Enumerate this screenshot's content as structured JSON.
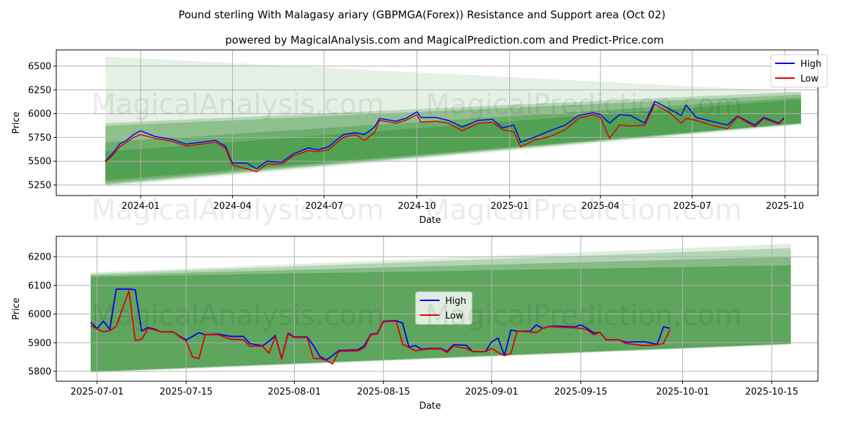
{
  "title": "Pound sterling With Malagasy ariary (GBPMGA(Forex)) Resistance and Support area (Oct 02)",
  "subtitle": "powered by MagicalAnalysis.com and MagicalPrediction.com and Predict-Price.com",
  "watermark": [
    "MagicalAnalysis.com",
    "MagicalPrediction.com"
  ],
  "colors": {
    "high": "#0000ee",
    "low": "#dd0000",
    "band": "#2e8b2e"
  },
  "chart_data": [
    {
      "type": "line",
      "xlabel": "Date",
      "ylabel": "Price",
      "ylim": [
        5150,
        6680
      ],
      "yticks": [
        5250,
        5500,
        5750,
        6000,
        6250,
        6500
      ],
      "xticks": [
        "2024-01",
        "2024-04",
        "2024-07",
        "2024-10",
        "2025-01",
        "2025-04",
        "2025-07",
        "2025-10"
      ],
      "legend": {
        "position": "top-right",
        "entries": [
          "High",
          "Low"
        ]
      },
      "grid": true,
      "bands": [
        {
          "start": "2023-11-27",
          "end": "2025-10-17",
          "lo": [
            5230,
            5880
          ],
          "hi": [
            6600,
            6230
          ],
          "alpha": 0.12
        },
        {
          "start": "2023-11-27",
          "end": "2025-10-17",
          "lo": [
            5250,
            5890
          ],
          "hi": [
            5900,
            6230
          ],
          "alpha": 0.25
        },
        {
          "start": "2023-11-27",
          "end": "2025-10-17",
          "lo": [
            5260,
            5900
          ],
          "hi": [
            5870,
            6200
          ],
          "alpha": 0.3
        },
        {
          "start": "2023-11-27",
          "end": "2025-10-17",
          "lo": [
            5280,
            5900
          ],
          "hi": [
            5700,
            6170
          ],
          "alpha": 0.35
        },
        {
          "start": "2023-11-27",
          "end": "2025-10-17",
          "lo": [
            5300,
            5900
          ],
          "hi": [
            5600,
            6150
          ],
          "alpha": 0.4
        }
      ],
      "dates": [
        "2023-11-27",
        "2023-12-04",
        "2023-12-11",
        "2023-12-18",
        "2023-12-25",
        "2024-01-01",
        "2024-01-15",
        "2024-02-01",
        "2024-02-15",
        "2024-03-01",
        "2024-03-15",
        "2024-03-25",
        "2024-04-01",
        "2024-04-15",
        "2024-04-25",
        "2024-05-05",
        "2024-05-20",
        "2024-06-01",
        "2024-06-15",
        "2024-06-25",
        "2024-07-05",
        "2024-07-20",
        "2024-08-01",
        "2024-08-10",
        "2024-08-20",
        "2024-08-25",
        "2024-09-10",
        "2024-09-20",
        "2024-10-01",
        "2024-10-05",
        "2024-10-20",
        "2024-11-01",
        "2024-11-15",
        "2024-12-01",
        "2024-12-15",
        "2024-12-25",
        "2025-01-05",
        "2025-01-12",
        "2025-01-25",
        "2025-02-10",
        "2025-02-25",
        "2025-03-10",
        "2025-03-25",
        "2025-04-01",
        "2025-04-10",
        "2025-04-20",
        "2025-05-01",
        "2025-05-15",
        "2025-05-25",
        "2025-06-10",
        "2025-06-20",
        "2025-06-25",
        "2025-07-05",
        "2025-07-20",
        "2025-08-05",
        "2025-08-15",
        "2025-09-01",
        "2025-09-10",
        "2025-09-25",
        "2025-09-30"
      ],
      "series": [
        {
          "name": "High",
          "values": [
            5500,
            5580,
            5680,
            5720,
            5780,
            5820,
            5760,
            5730,
            5680,
            5700,
            5720,
            5660,
            5480,
            5480,
            5420,
            5500,
            5490,
            5580,
            5640,
            5620,
            5650,
            5780,
            5800,
            5780,
            5860,
            5950,
            5920,
            5950,
            6020,
            5960,
            5960,
            5930,
            5860,
            5930,
            5940,
            5850,
            5880,
            5700,
            5750,
            5820,
            5880,
            5980,
            6010,
            5990,
            5900,
            5990,
            5980,
            5900,
            6130,
            6040,
            5980,
            6090,
            5960,
            5920,
            5880,
            5975,
            5880,
            5960,
            5900,
            5955
          ]
        },
        {
          "name": "Low",
          "values": [
            5490,
            5560,
            5650,
            5700,
            5750,
            5780,
            5740,
            5710,
            5660,
            5680,
            5700,
            5640,
            5460,
            5420,
            5390,
            5470,
            5470,
            5560,
            5610,
            5600,
            5620,
            5750,
            5780,
            5720,
            5800,
            5930,
            5900,
            5930,
            5990,
            5910,
            5920,
            5900,
            5820,
            5900,
            5910,
            5830,
            5810,
            5650,
            5720,
            5760,
            5830,
            5950,
            5990,
            5960,
            5740,
            5880,
            5870,
            5880,
            6100,
            6000,
            5900,
            5950,
            5930,
            5880,
            5840,
            5970,
            5860,
            5950,
            5890,
            5945
          ]
        }
      ]
    },
    {
      "type": "line",
      "xlabel": "Date",
      "ylabel": "Price",
      "ylim": [
        5765,
        6270
      ],
      "yticks": [
        5800,
        5900,
        6000,
        6100,
        6200
      ],
      "xticks": [
        "2025-07-01",
        "2025-07-15",
        "2025-08-01",
        "2025-08-15",
        "2025-09-01",
        "2025-09-15",
        "2025-10-01",
        "2025-10-15"
      ],
      "legend": {
        "position": "center",
        "entries": [
          "High",
          "Low"
        ]
      },
      "grid": true,
      "bands": [
        {
          "start": "2025-06-30",
          "end": "2025-10-18",
          "lo": [
            5795,
            5893
          ],
          "hi": [
            6145,
            6245
          ],
          "alpha": 0.15
        },
        {
          "start": "2025-06-30",
          "end": "2025-10-18",
          "lo": [
            5797,
            5895
          ],
          "hi": [
            6140,
            6230
          ],
          "alpha": 0.25
        },
        {
          "start": "2025-06-30",
          "end": "2025-10-18",
          "lo": [
            5798,
            5896
          ],
          "hi": [
            6135,
            6200
          ],
          "alpha": 0.35
        },
        {
          "start": "2025-06-30",
          "end": "2025-10-18",
          "lo": [
            5800,
            5897
          ],
          "hi": [
            6130,
            6170
          ],
          "alpha": 0.45
        }
      ],
      "dates": [
        "2025-06-30",
        "2025-07-01",
        "2025-07-02",
        "2025-07-03",
        "2025-07-04",
        "2025-07-06",
        "2025-07-07",
        "2025-07-08",
        "2025-07-09",
        "2025-07-10",
        "2025-07-11",
        "2025-07-13",
        "2025-07-14",
        "2025-07-15",
        "2025-07-16",
        "2025-07-17",
        "2025-07-18",
        "2025-07-20",
        "2025-07-22",
        "2025-07-24",
        "2025-07-25",
        "2025-07-27",
        "2025-07-28",
        "2025-07-29",
        "2025-07-30",
        "2025-07-31",
        "2025-08-01",
        "2025-08-03",
        "2025-08-04",
        "2025-08-05",
        "2025-08-06",
        "2025-08-07",
        "2025-08-08",
        "2025-08-11",
        "2025-08-12",
        "2025-08-13",
        "2025-08-14",
        "2025-08-15",
        "2025-08-17",
        "2025-08-18",
        "2025-08-19",
        "2025-08-20",
        "2025-08-21",
        "2025-08-22",
        "2025-08-24",
        "2025-08-25",
        "2025-08-26",
        "2025-08-28",
        "2025-08-29",
        "2025-08-31",
        "2025-09-01",
        "2025-09-02",
        "2025-09-03",
        "2025-09-04",
        "2025-09-05",
        "2025-09-07",
        "2025-09-08",
        "2025-09-09",
        "2025-09-10",
        "2025-09-11",
        "2025-09-14",
        "2025-09-15",
        "2025-09-16",
        "2025-09-17",
        "2025-09-18",
        "2025-09-19",
        "2025-09-21",
        "2025-09-22",
        "2025-09-25",
        "2025-09-27",
        "2025-09-28",
        "2025-09-29"
      ],
      "series": [
        {
          "name": "High",
          "values": [
            5971,
            5950,
            5975,
            5947,
            6087,
            6087,
            6085,
            5940,
            5953,
            5948,
            5938,
            5938,
            5922,
            5910,
            5922,
            5935,
            5928,
            5930,
            5922,
            5922,
            5897,
            5889,
            5905,
            5925,
            5845,
            5933,
            5920,
            5920,
            5890,
            5852,
            5840,
            5855,
            5873,
            5875,
            5890,
            5930,
            5932,
            5975,
            5977,
            5968,
            5885,
            5890,
            5877,
            5880,
            5880,
            5870,
            5893,
            5891,
            5869,
            5869,
            5903,
            5916,
            5855,
            5944,
            5940,
            5940,
            5962,
            5950,
            5957,
            5958,
            5955,
            5962,
            5950,
            5934,
            5936,
            5910,
            5910,
            5902,
            5903,
            5895,
            5956,
            5950
          ]
        },
        {
          "name": "Low",
          "values": [
            5960,
            5948,
            5938,
            5942,
            5957,
            6081,
            5908,
            5912,
            5950,
            5945,
            5938,
            5938,
            5920,
            5906,
            5850,
            5845,
            5928,
            5928,
            5912,
            5910,
            5888,
            5888,
            5863,
            5922,
            5843,
            5930,
            5918,
            5918,
            5845,
            5845,
            5838,
            5826,
            5870,
            5872,
            5882,
            5928,
            5930,
            5973,
            5975,
            5895,
            5883,
            5872,
            5875,
            5878,
            5878,
            5866,
            5888,
            5880,
            5869,
            5869,
            5880,
            5866,
            5855,
            5862,
            5940,
            5938,
            5935,
            5950,
            5956,
            5955,
            5952,
            5950,
            5945,
            5928,
            5936,
            5910,
            5910,
            5898,
            5890,
            5893,
            5898,
            5945
          ]
        }
      ]
    }
  ]
}
